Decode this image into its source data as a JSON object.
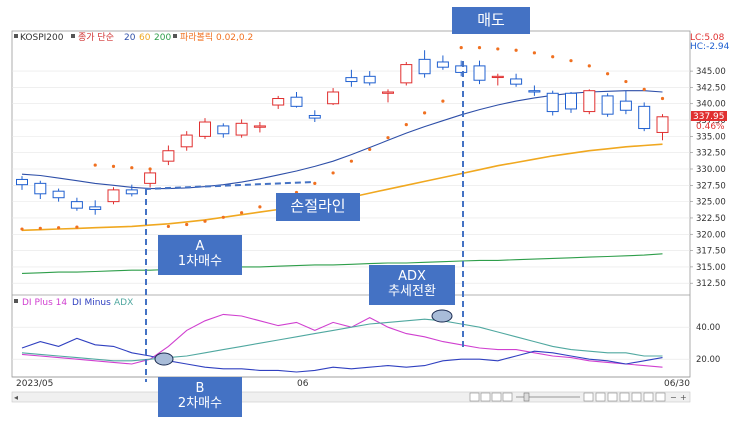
{
  "header": {
    "symbol": "KOSPI200",
    "price_type": "종가 단순",
    "ma_periods": [
      "20",
      "60",
      "200"
    ],
    "ma_colors": [
      "#2e4fa8",
      "#f0a820",
      "#2e9e4a"
    ],
    "sar_label": "파라볼릭 0.02,0.2",
    "sar_color": "#f07020",
    "lc": "LC:5.08",
    "hc": "HC:-2.94",
    "current_price": "337.95",
    "change_pct": "0.46%"
  },
  "lower_header": {
    "items": [
      {
        "label": "DI Plus 14",
        "color": "#d040d0"
      },
      {
        "label": "DI Minus",
        "color": "#3040c0"
      },
      {
        "label": "ADX",
        "color": "#50a8a0"
      }
    ]
  },
  "footer": {
    "date_labels": [
      "2023/05",
      "06",
      "06/30"
    ]
  },
  "annotations": {
    "top_label": "매도",
    "stop_line_label": "손절라인",
    "a_label": "A\n1차매수",
    "adx_label": "ADX\n추세전환",
    "b_label": "B\n2차매수"
  },
  "colors": {
    "up_candle": "#e03030",
    "down_candle": "#2060d0",
    "annotation_box": "#4472c4",
    "dashed_line": "#4472c4"
  },
  "chart_data": [
    {
      "type": "candlestick",
      "title": "",
      "y_axis_ticks": [
        "345.00",
        "342.50",
        "340.00",
        "337.50",
        "335.00",
        "332.50",
        "330.00",
        "327.50",
        "325.00",
        "322.50",
        "320.00",
        "317.50",
        "315.00",
        "312.50"
      ],
      "ylim": [
        311,
        349
      ],
      "candles": [
        {
          "i": 0,
          "o": 328.4,
          "h": 328.9,
          "l": 326.8,
          "c": 327.6
        },
        {
          "i": 1,
          "o": 327.8,
          "h": 328.2,
          "l": 325.4,
          "c": 326.2
        },
        {
          "i": 2,
          "o": 326.6,
          "h": 327.0,
          "l": 325.0,
          "c": 325.6
        },
        {
          "i": 3,
          "o": 325.0,
          "h": 325.6,
          "l": 323.6,
          "c": 324.0
        },
        {
          "i": 4,
          "o": 324.2,
          "h": 325.2,
          "l": 323.0,
          "c": 323.8
        },
        {
          "i": 5,
          "o": 325.0,
          "h": 327.2,
          "l": 324.6,
          "c": 326.8
        },
        {
          "i": 6,
          "o": 326.8,
          "h": 327.6,
          "l": 325.8,
          "c": 326.2
        },
        {
          "i": 7,
          "o": 327.8,
          "h": 330.0,
          "l": 327.2,
          "c": 329.4
        },
        {
          "i": 8,
          "o": 331.2,
          "h": 333.6,
          "l": 330.6,
          "c": 332.8
        },
        {
          "i": 9,
          "o": 333.4,
          "h": 335.8,
          "l": 332.8,
          "c": 335.2
        },
        {
          "i": 10,
          "o": 335.0,
          "h": 337.8,
          "l": 334.6,
          "c": 337.2
        },
        {
          "i": 11,
          "o": 336.6,
          "h": 337.0,
          "l": 334.8,
          "c": 335.4
        },
        {
          "i": 12,
          "o": 335.2,
          "h": 337.6,
          "l": 334.8,
          "c": 337.0
        },
        {
          "i": 13,
          "o": 336.4,
          "h": 337.2,
          "l": 335.6,
          "c": 336.6
        },
        {
          "i": 14,
          "o": 339.8,
          "h": 341.2,
          "l": 339.2,
          "c": 340.8
        },
        {
          "i": 15,
          "o": 341.0,
          "h": 341.8,
          "l": 339.4,
          "c": 339.6
        },
        {
          "i": 16,
          "o": 338.2,
          "h": 339.0,
          "l": 337.2,
          "c": 337.8
        },
        {
          "i": 17,
          "o": 340.0,
          "h": 342.4,
          "l": 339.8,
          "c": 341.8
        },
        {
          "i": 18,
          "o": 344.0,
          "h": 345.2,
          "l": 342.6,
          "c": 343.4
        },
        {
          "i": 19,
          "o": 344.2,
          "h": 345.0,
          "l": 342.8,
          "c": 343.2
        },
        {
          "i": 20,
          "o": 341.6,
          "h": 342.2,
          "l": 340.2,
          "c": 341.8
        },
        {
          "i": 21,
          "o": 343.2,
          "h": 346.4,
          "l": 342.8,
          "c": 346.0
        },
        {
          "i": 22,
          "o": 346.8,
          "h": 348.2,
          "l": 344.0,
          "c": 344.6
        },
        {
          "i": 23,
          "o": 346.4,
          "h": 347.4,
          "l": 345.2,
          "c": 345.6
        },
        {
          "i": 24,
          "o": 345.8,
          "h": 346.6,
          "l": 344.2,
          "c": 344.8
        },
        {
          "i": 25,
          "o": 345.8,
          "h": 346.6,
          "l": 343.0,
          "c": 343.6
        },
        {
          "i": 26,
          "o": 344.2,
          "h": 344.6,
          "l": 342.8,
          "c": 344.2
        },
        {
          "i": 27,
          "o": 343.8,
          "h": 344.6,
          "l": 342.6,
          "c": 343.0
        },
        {
          "i": 28,
          "o": 342.0,
          "h": 342.8,
          "l": 341.2,
          "c": 341.8
        },
        {
          "i": 29,
          "o": 341.6,
          "h": 342.0,
          "l": 338.2,
          "c": 338.8
        },
        {
          "i": 30,
          "o": 341.6,
          "h": 341.8,
          "l": 338.6,
          "c": 339.2
        },
        {
          "i": 31,
          "o": 338.8,
          "h": 342.2,
          "l": 338.4,
          "c": 342.0
        },
        {
          "i": 32,
          "o": 341.2,
          "h": 341.6,
          "l": 338.0,
          "c": 338.4
        },
        {
          "i": 33,
          "o": 340.4,
          "h": 342.0,
          "l": 338.4,
          "c": 339.0
        },
        {
          "i": 34,
          "o": 339.6,
          "h": 340.2,
          "l": 335.8,
          "c": 336.2
        },
        {
          "i": 35,
          "o": 335.6,
          "h": 338.4,
          "l": 334.4,
          "c": 338.0
        }
      ],
      "moving_averages": [
        {
          "period": "20",
          "values": [
            329.2,
            329.0,
            328.6,
            328.2,
            327.8,
            327.5,
            327.2,
            327.0,
            327.0,
            327.1,
            327.3,
            327.6,
            328.0,
            328.5,
            329.1,
            329.7,
            330.4,
            331.2,
            332.2,
            333.3,
            334.4,
            335.5,
            336.5,
            337.4,
            338.3,
            339.1,
            339.8,
            340.4,
            340.9,
            341.3,
            341.6,
            341.8,
            341.9,
            342.0,
            342.0,
            341.8
          ]
        },
        {
          "period": "60",
          "values": [
            320.6,
            320.7,
            320.8,
            320.9,
            321.0,
            321.1,
            321.2,
            321.4,
            321.6,
            321.9,
            322.2,
            322.6,
            323.0,
            323.4,
            323.8,
            324.2,
            324.6,
            325.1,
            325.7,
            326.3,
            326.9,
            327.5,
            328.1,
            328.7,
            329.3,
            329.9,
            330.5,
            331.0,
            331.5,
            332.0,
            332.4,
            332.8,
            333.1,
            333.4,
            333.6,
            333.8
          ]
        },
        {
          "period": "200",
          "values": [
            314.0,
            314.1,
            314.2,
            314.2,
            314.3,
            314.4,
            314.5,
            314.5,
            314.6,
            314.7,
            314.8,
            314.9,
            315.0,
            315.0,
            315.1,
            315.2,
            315.3,
            315.3,
            315.4,
            315.5,
            315.6,
            315.6,
            315.7,
            315.8,
            315.9,
            316.0,
            316.0,
            316.1,
            316.2,
            316.3,
            316.4,
            316.5,
            316.6,
            316.7,
            316.8,
            317.0
          ]
        }
      ],
      "parabolic_sar": [
        {
          "i": 0,
          "v": 320.8
        },
        {
          "i": 1,
          "v": 320.9
        },
        {
          "i": 2,
          "v": 321.0
        },
        {
          "i": 3,
          "v": 321.1
        },
        {
          "i": 4,
          "v": 330.6
        },
        {
          "i": 5,
          "v": 330.4
        },
        {
          "i": 6,
          "v": 330.2
        },
        {
          "i": 7,
          "v": 330.0
        },
        {
          "i": 8,
          "v": 321.2
        },
        {
          "i": 9,
          "v": 321.5
        },
        {
          "i": 10,
          "v": 322.0
        },
        {
          "i": 11,
          "v": 322.6
        },
        {
          "i": 12,
          "v": 323.3
        },
        {
          "i": 13,
          "v": 324.2
        },
        {
          "i": 14,
          "v": 325.2
        },
        {
          "i": 15,
          "v": 326.4
        },
        {
          "i": 16,
          "v": 327.8
        },
        {
          "i": 17,
          "v": 329.4
        },
        {
          "i": 18,
          "v": 331.2
        },
        {
          "i": 19,
          "v": 333.0
        },
        {
          "i": 20,
          "v": 334.8
        },
        {
          "i": 21,
          "v": 336.8
        },
        {
          "i": 22,
          "v": 338.6
        },
        {
          "i": 23,
          "v": 340.4
        },
        {
          "i": 24,
          "v": 348.6
        },
        {
          "i": 25,
          "v": 348.6
        },
        {
          "i": 26,
          "v": 348.4
        },
        {
          "i": 27,
          "v": 348.2
        },
        {
          "i": 28,
          "v": 347.8
        },
        {
          "i": 29,
          "v": 347.2
        },
        {
          "i": 30,
          "v": 346.6
        },
        {
          "i": 31,
          "v": 345.8
        },
        {
          "i": 32,
          "v": 344.6
        },
        {
          "i": 33,
          "v": 343.4
        },
        {
          "i": 34,
          "v": 342.2
        },
        {
          "i": 35,
          "v": 340.8
        }
      ]
    },
    {
      "type": "line",
      "title": "",
      "y_axis_ticks": [
        "40.00",
        "20.00"
      ],
      "ylim": [
        12,
        52
      ],
      "series": [
        {
          "name": "DI Plus 14",
          "color": "#d040d0",
          "values": [
            23,
            22,
            21,
            20,
            19,
            18,
            17,
            20,
            28,
            38,
            44,
            48,
            47,
            44,
            41,
            43,
            38,
            43,
            40,
            46,
            40,
            36,
            34,
            31,
            29,
            27,
            26,
            26,
            24,
            22,
            21,
            19,
            18,
            17,
            16,
            15
          ]
        },
        {
          "name": "DI Minus",
          "color": "#3040c0",
          "values": [
            27,
            31,
            28,
            33,
            29,
            28,
            24,
            22,
            19,
            17,
            15,
            14,
            14,
            13,
            13,
            12,
            13,
            15,
            14,
            15,
            16,
            15,
            16,
            19,
            20,
            20,
            19,
            22,
            25,
            24,
            22,
            20,
            19,
            17,
            19,
            21
          ]
        },
        {
          "name": "ADX",
          "color": "#50a8a0",
          "values": [
            24,
            23,
            22,
            21,
            20,
            19,
            19,
            20,
            21,
            22,
            24,
            26,
            28,
            30,
            32,
            34,
            36,
            38,
            40,
            42,
            43,
            44,
            45,
            44,
            42,
            40,
            37,
            34,
            31,
            28,
            26,
            25,
            24,
            24,
            22,
            22
          ]
        }
      ]
    }
  ]
}
